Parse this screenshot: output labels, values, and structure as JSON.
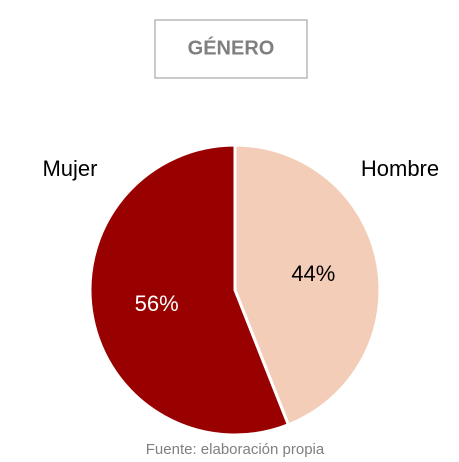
{
  "chart_data": {
    "type": "pie",
    "title": "GÉNERO",
    "categories": [
      "Hombre",
      "Mujer"
    ],
    "values": [
      44,
      56
    ],
    "value_labels": [
      "44%",
      "56%"
    ],
    "colors": [
      "#f4cdb8",
      "#990000"
    ],
    "source": "Fuente: elaboración propia"
  }
}
